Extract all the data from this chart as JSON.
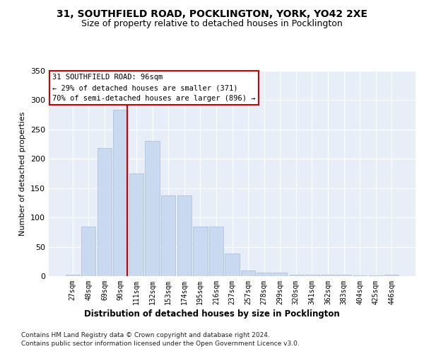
{
  "title": "31, SOUTHFIELD ROAD, POCKLINGTON, YORK, YO42 2XE",
  "subtitle": "Size of property relative to detached houses in Pocklington",
  "xlabel": "Distribution of detached houses by size in Pocklington",
  "ylabel": "Number of detached properties",
  "categories": [
    "27sqm",
    "48sqm",
    "69sqm",
    "90sqm",
    "111sqm",
    "132sqm",
    "153sqm",
    "174sqm",
    "195sqm",
    "216sqm",
    "237sqm",
    "257sqm",
    "278sqm",
    "299sqm",
    "320sqm",
    "341sqm",
    "362sqm",
    "383sqm",
    "404sqm",
    "425sqm",
    "446sqm"
  ],
  "values": [
    2,
    85,
    218,
    284,
    175,
    230,
    138,
    138,
    84,
    84,
    39,
    10,
    6,
    6,
    2,
    2,
    2,
    2,
    1,
    1,
    2
  ],
  "bar_color": "#c9d9f0",
  "bar_edge_color": "#a8bcd8",
  "vline_color": "#cc0000",
  "annotation_line1": "31 SOUTHFIELD ROAD: 96sqm",
  "annotation_line2": "← 29% of detached houses are smaller (371)",
  "annotation_line3": "70% of semi-detached houses are larger (896) →",
  "footnote1": "Contains HM Land Registry data © Crown copyright and database right 2024.",
  "footnote2": "Contains public sector information licensed under the Open Government Licence v3.0.",
  "ylim_max": 350,
  "yticks": [
    0,
    50,
    100,
    150,
    200,
    250,
    300,
    350
  ],
  "vline_x": 3.43,
  "bg_color": "#e8eef8"
}
